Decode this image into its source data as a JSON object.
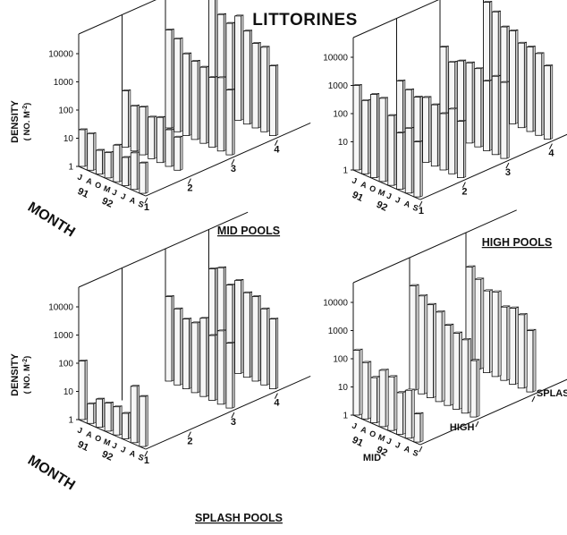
{
  "figure": {
    "title": "LITTORINES"
  },
  "y_axis": {
    "label": "DENSITY",
    "unit": "( NO. M",
    "unit_sup": "-2",
    "unit_close": ")",
    "ticks": [
      "1",
      "10",
      "100",
      "1000",
      "10000"
    ]
  },
  "month_axis": {
    "label": "MONTH",
    "ticks": [
      "J",
      "A",
      "O",
      "M",
      "J",
      "J",
      "A",
      "S"
    ],
    "year_labels": [
      "91",
      "92"
    ]
  },
  "chart_data": [
    {
      "type": "bar",
      "style": "3d-log",
      "caption": "MID POOLS",
      "scale": "log",
      "ylim": [
        1,
        10000
      ],
      "categories": [
        "J",
        "A",
        "O",
        "M",
        "J",
        "J",
        "A",
        "S"
      ],
      "series_ticks": [
        "1",
        "2",
        "3",
        "4"
      ],
      "series": [
        {
          "name": "1",
          "values": [
            20,
            20,
            7,
            8,
            20,
            10,
            20,
            12
          ]
        },
        {
          "name": "2",
          "values": [
            100,
            40,
            50,
            30,
            40,
            20,
            15,
            0
          ]
        },
        {
          "name": "3",
          "values": [
            3000,
            2000,
            800,
            600,
            500,
            300,
            400,
            200
          ]
        },
        {
          "name": "4",
          "values": [
            10000,
            3000,
            2000,
            5000,
            2000,
            1000,
            1000,
            300
          ]
        }
      ]
    },
    {
      "type": "bar",
      "style": "3d-log",
      "caption": "HIGH POOLS",
      "scale": "log",
      "ylim": [
        1,
        10000
      ],
      "categories": [
        "J",
        "A",
        "O",
        "M",
        "J",
        "J",
        "A",
        "S"
      ],
      "series_ticks": [
        "1",
        "2",
        "3",
        "4"
      ],
      "series": [
        {
          "name": "1",
          "values": [
            1000,
            400,
            900,
            900,
            300,
            100,
            200,
            90
          ]
        },
        {
          "name": "2",
          "values": [
            300,
            200,
            150,
            200,
            150,
            100,
            200,
            100
          ]
        },
        {
          "name": "3",
          "values": [
            1000,
            400,
            600,
            700,
            600,
            300,
            600,
            500
          ]
        },
        {
          "name": "4",
          "values": [
            8000,
            5000,
            2000,
            2000,
            1000,
            1000,
            800,
            400
          ]
        }
      ]
    },
    {
      "type": "bar",
      "style": "3d-log",
      "caption": "SPLASH POOLS",
      "scale": "log",
      "ylim": [
        1,
        10000
      ],
      "categories": [
        "J",
        "A",
        "O",
        "M",
        "J",
        "J",
        "A",
        "S"
      ],
      "series_ticks": [
        "1",
        "2",
        "3",
        "4"
      ],
      "series": [
        {
          "name": "1",
          "values": [
            120,
            5,
            10,
            10,
            10,
            8,
            100,
            60
          ]
        },
        {
          "name": "2",
          "values": [
            0,
            0,
            0,
            0,
            0,
            0,
            0,
            0
          ]
        },
        {
          "name": "3",
          "values": [
            1000,
            500,
            300,
            300,
            600,
            200,
            400,
            200
          ]
        },
        {
          "name": "4",
          "values": [
            2000,
            3000,
            1000,
            2000,
            1000,
            1000,
            500,
            300
          ]
        }
      ]
    },
    {
      "type": "bar",
      "style": "3d-log",
      "caption": "",
      "scale": "log",
      "ylim": [
        1,
        10000
      ],
      "categories": [
        "J",
        "A",
        "O",
        "M",
        "J",
        "J",
        "A",
        "S"
      ],
      "series_ticks": [
        "MID",
        "HIGH",
        "SPLASH"
      ],
      "series": [
        {
          "name": "MID",
          "values": [
            200,
            100,
            40,
            100,
            80,
            30,
            50,
            10
          ]
        },
        {
          "name": "HIGH",
          "values": [
            5000,
            3000,
            2000,
            1500,
            700,
            500,
            400,
            100
          ]
        },
        {
          "name": "SPLASH",
          "values": [
            3000,
            1500,
            800,
            1000,
            400,
            500,
            400,
            150
          ]
        }
      ]
    }
  ],
  "colors": {
    "ink": "#111111",
    "bar_face": "#f6f6f6",
    "bar_side": "#c9c9c9",
    "bar_top": "#ececec"
  }
}
